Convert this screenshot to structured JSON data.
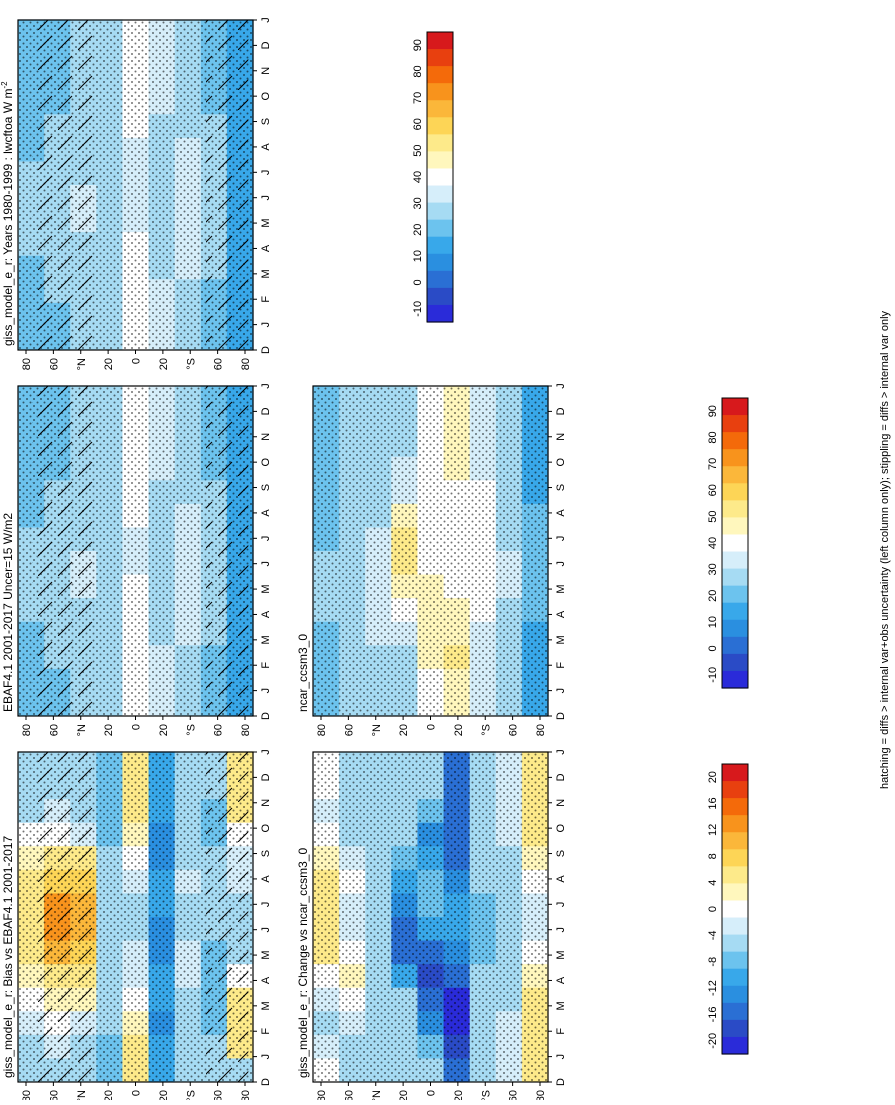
{
  "colors": {
    "scale": [
      "#d7191c",
      "#e8400f",
      "#f46a0a",
      "#f8931c",
      "#fbb73a",
      "#fdd556",
      "#fdea8a",
      "#fff7bd",
      "#ffffff",
      "#d6eefa",
      "#a6dbf3",
      "#6cc3ee",
      "#38a8ea",
      "#2a8fe0",
      "#2a6fd4",
      "#2a4bc6",
      "#2a2bd9"
    ],
    "hatch": "#000000",
    "stipple": "#000000"
  },
  "scales": {
    "abs": [
      "90",
      "80",
      "70",
      "60",
      "50",
      "40",
      "30",
      "20",
      "10",
      "0",
      "-10"
    ],
    "diff": [
      "20",
      "16",
      "12",
      "8",
      "4",
      "0",
      "-4",
      "-8",
      "-12",
      "-16",
      "-20"
    ]
  },
  "axes": {
    "months": [
      "D",
      "J",
      "F",
      "M",
      "A",
      "M",
      "J",
      "J",
      "A",
      "S",
      "O",
      "N",
      "D",
      "J"
    ],
    "lat_labels": [
      "80",
      "60",
      "°N",
      "20",
      "0",
      "20",
      "°S",
      "60",
      "80"
    ]
  },
  "footer": "hatching = diffs > internal var+obs uncertainty (left column only); stippling = diffs > internal var only",
  "chart_data": [
    {
      "id": "model",
      "type": "heatmap",
      "title": "giss_model_e_r: Years 1980-1999 : lwcftoa W m",
      "title_sup": "-2",
      "scale": "abs",
      "row": 0,
      "col": 0,
      "xlabel": "month",
      "ylabel": "latitude",
      "ylim": [
        -90,
        90
      ],
      "values": [
        [
          20,
          20,
          22,
          24,
          26,
          28,
          28,
          26,
          24,
          22,
          20,
          20,
          20,
          20
        ],
        [
          24,
          24,
          26,
          28,
          28,
          30,
          30,
          28,
          26,
          26,
          24,
          24,
          24,
          24
        ],
        [
          26,
          26,
          28,
          30,
          30,
          32,
          32,
          30,
          28,
          28,
          26,
          26,
          26,
          26
        ],
        [
          28,
          28,
          28,
          28,
          28,
          28,
          26,
          26,
          26,
          26,
          28,
          28,
          28,
          28
        ],
        [
          40,
          40,
          40,
          38,
          38,
          36,
          34,
          34,
          36,
          38,
          40,
          40,
          40,
          40
        ],
        [
          32,
          32,
          32,
          30,
          30,
          28,
          28,
          28,
          30,
          30,
          32,
          32,
          32,
          32
        ],
        [
          30,
          30,
          30,
          32,
          32,
          34,
          34,
          34,
          32,
          30,
          30,
          30,
          30,
          30
        ],
        [
          22,
          22,
          24,
          26,
          28,
          30,
          30,
          30,
          28,
          26,
          24,
          22,
          22,
          22
        ],
        [
          12,
          12,
          12,
          14,
          16,
          18,
          18,
          18,
          16,
          14,
          12,
          12,
          12,
          12
        ]
      ]
    },
    {
      "id": "obs",
      "type": "heatmap",
      "title": "EBAF4.1 2001-2017 Uncer=15 W/m2",
      "scale": "abs",
      "row": 1,
      "col": 0,
      "xlabel": "month",
      "ylabel": "latitude",
      "ylim": [
        -90,
        90
      ],
      "values": [
        [
          20,
          20,
          22,
          24,
          26,
          28,
          28,
          26,
          24,
          22,
          20,
          20,
          20,
          20
        ],
        [
          24,
          24,
          26,
          28,
          28,
          30,
          30,
          28,
          26,
          26,
          24,
          24,
          24,
          24
        ],
        [
          26,
          26,
          28,
          30,
          30,
          32,
          32,
          30,
          28,
          28,
          26,
          26,
          26,
          26
        ],
        [
          28,
          28,
          28,
          28,
          28,
          28,
          26,
          26,
          26,
          26,
          28,
          28,
          28,
          28
        ],
        [
          42,
          42,
          42,
          40,
          40,
          38,
          36,
          36,
          38,
          40,
          42,
          42,
          42,
          42
        ],
        [
          32,
          32,
          32,
          30,
          30,
          28,
          28,
          28,
          30,
          30,
          32,
          32,
          32,
          32
        ],
        [
          30,
          30,
          30,
          32,
          32,
          34,
          34,
          34,
          32,
          30,
          30,
          30,
          30,
          30
        ],
        [
          22,
          22,
          24,
          26,
          28,
          30,
          30,
          30,
          28,
          26,
          24,
          22,
          22,
          22
        ],
        [
          12,
          12,
          12,
          14,
          16,
          18,
          18,
          18,
          16,
          14,
          12,
          12,
          12,
          12
        ]
      ]
    },
    {
      "id": "bias",
      "type": "heatmap",
      "title": "giss_model_e_r: Bias vs EBAF4.1 2001-2017",
      "scale": "diff",
      "row": 2,
      "col": 0,
      "xlabel": "month",
      "ylabel": "latitude",
      "ylim": [
        -90,
        90
      ],
      "values": [
        [
          -6,
          -4,
          -2,
          0,
          2,
          4,
          6,
          6,
          4,
          2,
          0,
          -4,
          -6,
          -6
        ],
        [
          -4,
          -2,
          0,
          2,
          6,
          10,
          12,
          12,
          8,
          4,
          0,
          -2,
          -4,
          -4
        ],
        [
          -6,
          -4,
          -2,
          2,
          6,
          8,
          10,
          10,
          8,
          4,
          -2,
          -4,
          -6,
          -6
        ],
        [
          -8,
          -8,
          -6,
          -6,
          -4,
          -4,
          -4,
          -6,
          -6,
          -6,
          -8,
          -8,
          -8,
          -8
        ],
        [
          4,
          4,
          2,
          0,
          -2,
          -2,
          -4,
          -4,
          -2,
          0,
          2,
          4,
          4,
          4
        ],
        [
          -10,
          -10,
          -12,
          -10,
          -10,
          -12,
          -12,
          -10,
          -10,
          -12,
          -12,
          -10,
          -10,
          -10
        ],
        [
          -4,
          -4,
          -6,
          -4,
          -2,
          -2,
          -4,
          -4,
          -2,
          -4,
          -4,
          -4,
          -4,
          -4
        ],
        [
          -6,
          -6,
          -8,
          -8,
          -8,
          -8,
          -6,
          -6,
          -6,
          -6,
          -8,
          -8,
          -6,
          -6
        ],
        [
          -4,
          4,
          6,
          4,
          0,
          -4,
          -4,
          -4,
          -2,
          -2,
          0,
          4,
          6,
          6
        ]
      ]
    },
    {
      "id": "ncar",
      "type": "heatmap",
      "title": "ncar_ccsm3_0",
      "scale": "abs",
      "row": 1,
      "col": 1,
      "xlabel": "month",
      "ylabel": "latitude",
      "ylim": [
        -90,
        90
      ],
      "values": [
        [
          22,
          22,
          24,
          24,
          26,
          26,
          26,
          24,
          24,
          22,
          22,
          22,
          22,
          22
        ],
        [
          26,
          26,
          28,
          28,
          30,
          30,
          30,
          28,
          28,
          28,
          26,
          26,
          26,
          26
        ],
        [
          30,
          30,
          30,
          32,
          32,
          34,
          34,
          32,
          30,
          30,
          30,
          30,
          30,
          30
        ],
        [
          30,
          30,
          30,
          34,
          38,
          46,
          50,
          50,
          44,
          36,
          32,
          30,
          30,
          30
        ],
        [
          38,
          42,
          44,
          46,
          46,
          44,
          42,
          42,
          42,
          42,
          40,
          38,
          38,
          38
        ],
        [
          46,
          48,
          50,
          48,
          44,
          40,
          38,
          38,
          40,
          42,
          44,
          46,
          46,
          46
        ],
        [
          34,
          34,
          34,
          36,
          38,
          40,
          42,
          42,
          40,
          38,
          36,
          34,
          34,
          34
        ],
        [
          28,
          28,
          28,
          28,
          30,
          32,
          32,
          30,
          28,
          28,
          28,
          28,
          28,
          28
        ],
        [
          18,
          18,
          18,
          18,
          20,
          22,
          22,
          22,
          20,
          18,
          18,
          18,
          18,
          18
        ]
      ]
    },
    {
      "id": "change",
      "type": "heatmap",
      "title": "giss_model_e_r: Change vs ncar_ccsm3_0",
      "scale": "diff",
      "row": 2,
      "col": 1,
      "xlabel": "month",
      "ylabel": "latitude",
      "ylim": [
        -90,
        90
      ],
      "values": [
        [
          0,
          -2,
          -4,
          -2,
          0,
          4,
          6,
          6,
          4,
          2,
          0,
          -2,
          0,
          0
        ],
        [
          -4,
          -4,
          -2,
          0,
          2,
          0,
          -2,
          -2,
          0,
          -2,
          -4,
          -4,
          -4,
          -4
        ],
        [
          -4,
          -4,
          -6,
          -4,
          -4,
          -4,
          -6,
          -6,
          -4,
          -4,
          -6,
          -6,
          -4,
          -4
        ],
        [
          -4,
          -4,
          -4,
          -6,
          -10,
          -14,
          -14,
          -12,
          -10,
          -8,
          -6,
          -4,
          -4,
          -4
        ],
        [
          -4,
          -8,
          -12,
          -16,
          -18,
          -14,
          -10,
          -8,
          -8,
          -10,
          -12,
          -8,
          -4,
          -4
        ],
        [
          -16,
          -18,
          -20,
          -20,
          -16,
          -12,
          -10,
          -10,
          -12,
          -14,
          -16,
          -16,
          -16,
          -16
        ],
        [
          -4,
          -4,
          -4,
          -6,
          -6,
          -8,
          -8,
          -8,
          -6,
          -6,
          -4,
          -4,
          -4,
          -4
        ],
        [
          -2,
          -2,
          -2,
          -4,
          -4,
          -6,
          -6,
          -6,
          -4,
          -4,
          -2,
          -2,
          -2,
          -2
        ],
        [
          4,
          6,
          6,
          4,
          2,
          0,
          -2,
          -2,
          0,
          2,
          4,
          6,
          6,
          4
        ]
      ]
    }
  ]
}
